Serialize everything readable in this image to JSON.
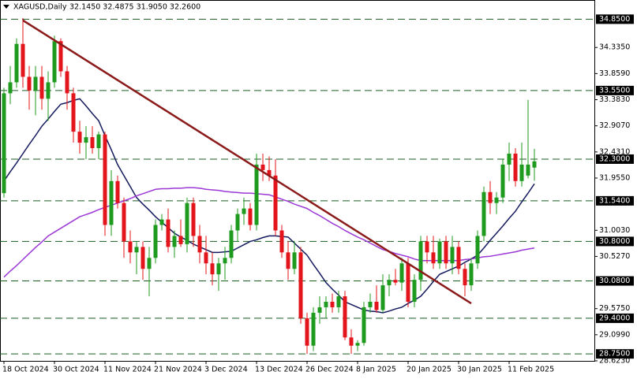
{
  "chart_data": {
    "type": "candlestick",
    "title": "XAGUSD,Daily",
    "quote": "32.1450 32.4875 31.9050 32.2600",
    "up_color": "#1e9b1e",
    "down_color": "#e3141b",
    "categories": [
      "18 Oct 2024",
      null,
      null,
      null,
      null,
      null,
      null,
      null,
      "30 Oct 2024",
      null,
      null,
      null,
      null,
      null,
      null,
      null,
      "11 Nov 2024",
      null,
      null,
      null,
      null,
      null,
      null,
      null,
      "21 Nov 2024",
      null,
      null,
      null,
      null,
      null,
      null,
      null,
      "3 Dec 2024",
      null,
      null,
      null,
      null,
      null,
      null,
      null,
      "13 Dec 2024",
      null,
      null,
      null,
      null,
      null,
      null,
      null,
      "26 Dec 2024",
      null,
      null,
      null,
      null,
      null,
      null,
      null,
      "8 Jan 2025",
      null,
      null,
      null,
      null,
      null,
      null,
      null,
      "20 Jan 2025",
      null,
      null,
      null,
      null,
      null,
      null,
      null,
      "30 Jan 2025",
      null,
      null,
      null,
      null,
      null,
      null,
      null,
      "11 Feb 2025",
      null,
      null,
      null,
      null
    ],
    "open": [
      31.68,
      33.5,
      33.7,
      34.4,
      33.8,
      33.55,
      33.8,
      33.4,
      33.7,
      34.45,
      33.9,
      33.5,
      32.8,
      32.6,
      32.7,
      32.5,
      32.75,
      31.1,
      31.9,
      31.5,
      30.8,
      30.6,
      30.7,
      30.3,
      30.5,
      31.1,
      31.2,
      30.7,
      30.9,
      30.75,
      31.5,
      30.9,
      30.6,
      30.4,
      30.2,
      30.4,
      30.5,
      31.0,
      31.3,
      31.4,
      31.1,
      32.2,
      32.1,
      32.0,
      31.0,
      30.6,
      30.3,
      30.6,
      29.4,
      28.9,
      29.5,
      29.6,
      29.7,
      29.6,
      29.8,
      29.05,
      28.9,
      28.95,
      29.6,
      29.7,
      29.55,
      30.0,
      30.1,
      30.05,
      30.4,
      29.7,
      30.1,
      30.8,
      30.6,
      30.4,
      30.8,
      30.4,
      30.7,
      30.3,
      30.0,
      30.4,
      30.9,
      31.7,
      31.5,
      31.6,
      32.2,
      32.4,
      31.9,
      32.0,
      32.145
    ],
    "high": [
      33.6,
      34.0,
      34.5,
      34.87,
      34.0,
      34.0,
      34.0,
      33.9,
      34.55,
      34.5,
      34.0,
      33.6,
      33.0,
      32.9,
      32.9,
      32.8,
      32.8,
      32.1,
      32.0,
      31.6,
      31.0,
      30.8,
      30.8,
      30.7,
      31.2,
      31.3,
      31.4,
      31.0,
      31.2,
      31.6,
      31.6,
      31.1,
      30.9,
      30.6,
      30.5,
      30.7,
      31.1,
      31.4,
      31.6,
      31.5,
      32.4,
      32.4,
      32.35,
      32.3,
      31.1,
      30.8,
      30.8,
      30.7,
      29.5,
      29.6,
      29.8,
      29.8,
      29.85,
      29.9,
      29.9,
      29.2,
      29.0,
      29.7,
      29.85,
      30.0,
      30.2,
      30.2,
      30.3,
      30.5,
      30.5,
      30.2,
      30.9,
      30.9,
      30.9,
      30.85,
      30.9,
      30.9,
      30.8,
      30.4,
      30.5,
      31.0,
      31.8,
      31.9,
      31.7,
      32.3,
      32.6,
      32.5,
      32.6,
      33.38,
      32.4875
    ],
    "low": [
      31.6,
      33.3,
      33.6,
      33.6,
      33.2,
      33.1,
      33.2,
      33.0,
      33.6,
      33.8,
      33.2,
      32.6,
      32.4,
      32.3,
      32.4,
      32.3,
      30.9,
      30.9,
      31.4,
      30.5,
      30.4,
      30.2,
      30.1,
      29.8,
      30.4,
      31.0,
      30.6,
      30.5,
      30.7,
      30.6,
      30.7,
      30.4,
      30.2,
      30.0,
      29.9,
      30.1,
      30.4,
      30.8,
      31.1,
      31.0,
      31.0,
      31.9,
      31.9,
      30.9,
      30.5,
      30.1,
      30.2,
      29.3,
      28.75,
      28.8,
      29.3,
      29.4,
      29.5,
      29.5,
      29.0,
      28.75,
      28.8,
      28.9,
      29.5,
      29.5,
      29.5,
      29.8,
      30.0,
      29.9,
      29.6,
      29.6,
      29.9,
      30.4,
      30.3,
      30.3,
      30.3,
      30.2,
      30.2,
      29.8,
      29.9,
      30.3,
      30.8,
      31.3,
      31.3,
      31.5,
      31.9,
      31.8,
      31.8,
      31.95,
      31.905
    ],
    "close": [
      33.5,
      33.7,
      34.4,
      33.8,
      33.55,
      33.8,
      33.4,
      33.7,
      34.45,
      33.9,
      33.5,
      32.8,
      32.6,
      32.7,
      32.5,
      32.75,
      31.1,
      31.9,
      31.5,
      30.8,
      30.6,
      30.7,
      30.3,
      30.5,
      31.1,
      31.2,
      30.7,
      30.9,
      30.75,
      31.5,
      30.9,
      30.6,
      30.4,
      30.2,
      30.4,
      30.5,
      31.0,
      31.3,
      31.4,
      31.1,
      32.2,
      32.1,
      32.0,
      31.0,
      30.6,
      30.3,
      30.6,
      29.4,
      28.9,
      29.5,
      29.6,
      29.7,
      29.6,
      29.8,
      29.05,
      28.9,
      28.95,
      29.6,
      29.7,
      29.55,
      30.0,
      30.1,
      30.05,
      30.4,
      29.7,
      30.1,
      30.8,
      30.6,
      30.4,
      30.8,
      30.4,
      30.7,
      30.3,
      30.0,
      30.4,
      30.9,
      31.7,
      31.5,
      31.6,
      32.2,
      32.4,
      31.9,
      32.2,
      32.2,
      32.26
    ],
    "series": [
      {
        "color": "#141a5e",
        "values": [
          31.9,
          32.07,
          32.23,
          32.4,
          32.57,
          32.73,
          32.9,
          33.03,
          33.17,
          33.3,
          33.33,
          33.37,
          33.4,
          33.27,
          33.13,
          33.0,
          32.73,
          32.47,
          32.2,
          32.0,
          31.8,
          31.6,
          31.48,
          31.37,
          31.25,
          31.15,
          31.05,
          30.95,
          30.88,
          30.82,
          30.75,
          30.7,
          30.65,
          30.6,
          30.6,
          30.61,
          30.62,
          30.68,
          30.74,
          30.8,
          30.83,
          30.87,
          30.9,
          30.9,
          30.89,
          30.88,
          30.77,
          30.66,
          30.55,
          30.38,
          30.22,
          30.05,
          29.93,
          29.82,
          29.7,
          29.65,
          29.6,
          29.55,
          29.53,
          29.52,
          29.5,
          29.53,
          29.57,
          29.6,
          29.67,
          29.73,
          29.8,
          29.93,
          30.07,
          30.2,
          30.25,
          30.3,
          30.35,
          30.42,
          30.48,
          30.55,
          30.68,
          30.82,
          30.95,
          31.08,
          31.22,
          31.35,
          31.52,
          31.68,
          31.85
        ]
      },
      {
        "color": "#9b38d6",
        "values": [
          30.15,
          30.26,
          30.36,
          30.47,
          30.58,
          30.69,
          30.79,
          30.9,
          30.97,
          31.04,
          31.11,
          31.18,
          31.25,
          31.29,
          31.33,
          31.38,
          31.42,
          31.46,
          31.5,
          31.54,
          31.58,
          31.63,
          31.67,
          31.71,
          31.75,
          31.76,
          31.76,
          31.77,
          31.77,
          31.78,
          31.78,
          31.77,
          31.75,
          31.74,
          31.73,
          31.71,
          31.7,
          31.69,
          31.68,
          31.68,
          31.67,
          31.66,
          31.65,
          31.61,
          31.57,
          31.53,
          31.48,
          31.44,
          31.4,
          31.33,
          31.27,
          31.2,
          31.13,
          31.07,
          31.0,
          30.94,
          30.88,
          30.83,
          30.77,
          30.71,
          30.65,
          30.62,
          30.58,
          30.55,
          30.52,
          30.48,
          30.45,
          30.45,
          30.45,
          30.45,
          30.45,
          30.45,
          30.45,
          30.47,
          30.48,
          30.5,
          30.52,
          30.53,
          30.55,
          30.57,
          30.59,
          30.61,
          30.64,
          30.66,
          30.68
        ]
      }
    ],
    "trendline": {
      "color": "#8b1a1a",
      "values": [
        34.83,
        29.67
      ]
    },
    "levels": [
      {
        "value": 34.85,
        "label": "34.8500"
      },
      {
        "value": 33.55,
        "label": "33.5500"
      },
      {
        "value": 32.3,
        "label": "32.3000"
      },
      {
        "value": 31.54,
        "label": "31.5400"
      },
      {
        "value": 30.8,
        "label": "30.8000"
      },
      {
        "value": 30.08,
        "label": "30.0800"
      },
      {
        "value": 29.4,
        "label": "29.4000"
      },
      {
        "value": 28.75,
        "label": "28.7500"
      }
    ],
    "level_color": "#1b5e20",
    "ylim": [
      28.623,
      35.2
    ],
    "yticks": [
      {
        "value": 34.335,
        "label": "34.3350"
      },
      {
        "value": 33.859,
        "label": "33.8590"
      },
      {
        "value": 33.383,
        "label": "33.3830"
      },
      {
        "value": 32.907,
        "label": "32.9070"
      },
      {
        "value": 32.431,
        "label": "32.4310"
      },
      {
        "value": 31.955,
        "label": "31.9550"
      },
      {
        "value": 31.003,
        "label": "31.0030"
      },
      {
        "value": 30.527,
        "label": "30.5270"
      },
      {
        "value": 29.575,
        "label": "29.5750"
      },
      {
        "value": 29.099,
        "label": "29.0990"
      },
      {
        "value": 28.623,
        "label": "28.6230"
      }
    ]
  }
}
